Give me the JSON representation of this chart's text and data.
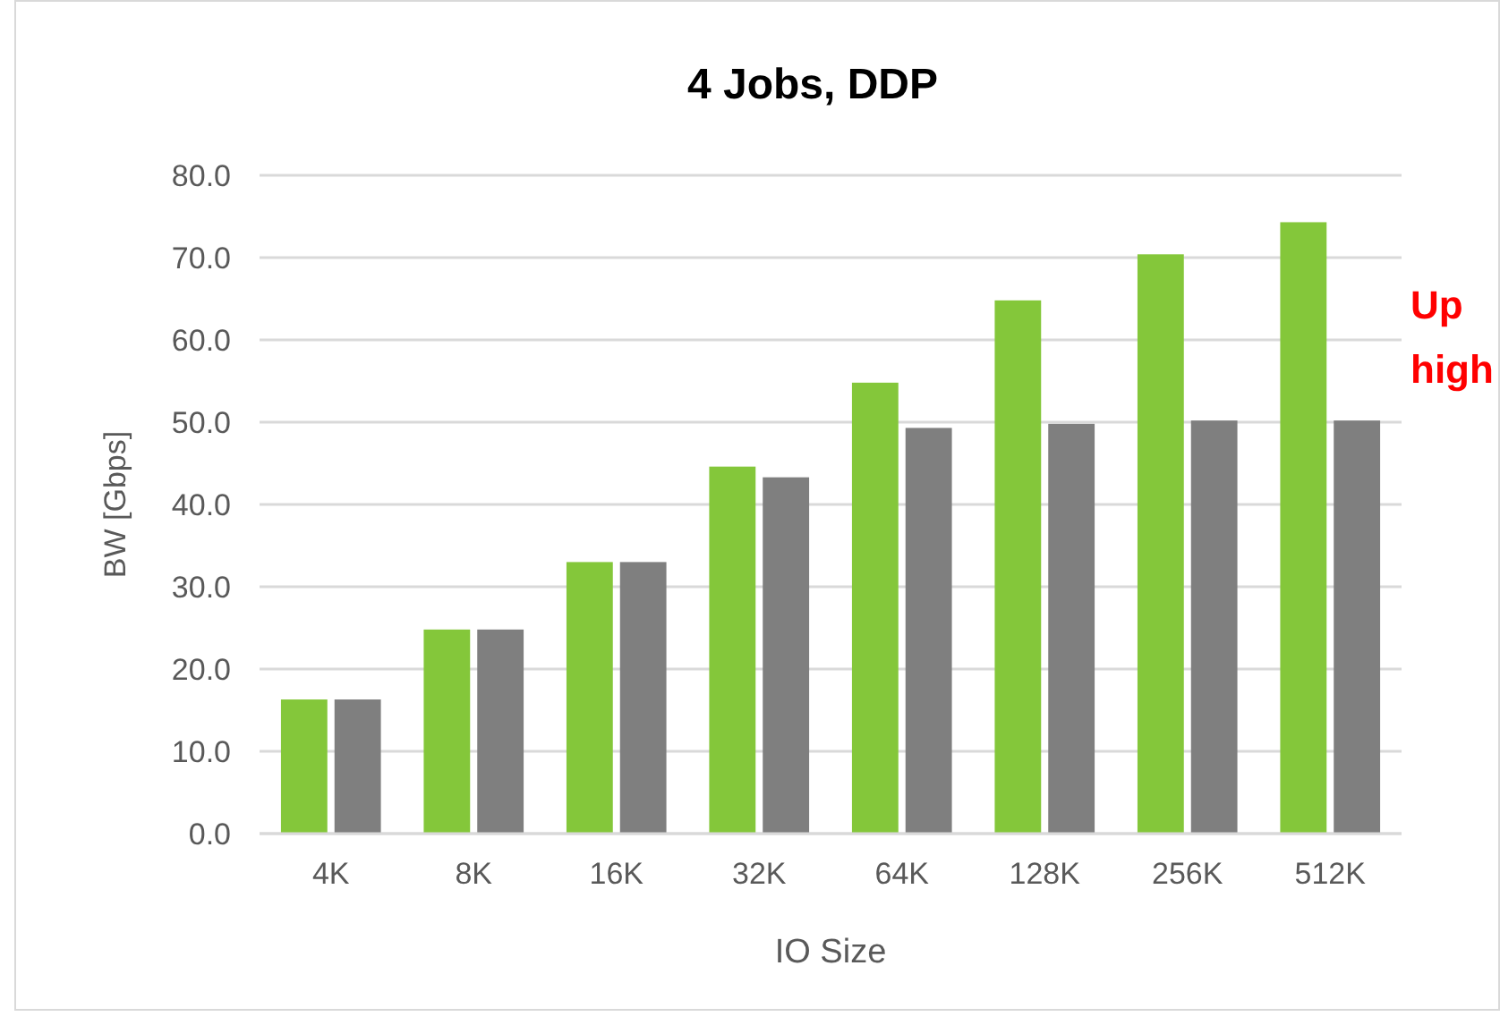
{
  "chart_data": {
    "type": "bar",
    "title": "4 Jobs, DDP",
    "xlabel": "IO Size",
    "ylabel": "BW [Gbps]",
    "categories": [
      "4K",
      "8K",
      "16K",
      "32K",
      "64K",
      "128K",
      "256K",
      "512K"
    ],
    "series": [
      {
        "color": "#84c73a",
        "values": [
          16.3,
          24.8,
          33.0,
          44.6,
          54.8,
          64.8,
          70.4,
          74.3
        ]
      },
      {
        "color": "#7f7f7f",
        "values": [
          16.3,
          24.8,
          33.0,
          43.3,
          49.3,
          49.8,
          50.2,
          50.2
        ]
      }
    ],
    "ylim": [
      0,
      80
    ],
    "yticks": [
      {
        "value": 0,
        "label": "0.0"
      },
      {
        "value": 10,
        "label": "10.0"
      },
      {
        "value": 20,
        "label": "20.0"
      },
      {
        "value": 30,
        "label": "30.0"
      },
      {
        "value": 40,
        "label": "40.0"
      },
      {
        "value": 50,
        "label": "50.0"
      },
      {
        "value": 60,
        "label": "60.0"
      },
      {
        "value": 70,
        "label": "70.0"
      },
      {
        "value": 80,
        "label": "80.0"
      }
    ],
    "grid": "y",
    "annotations": [
      "Up",
      "high"
    ]
  }
}
